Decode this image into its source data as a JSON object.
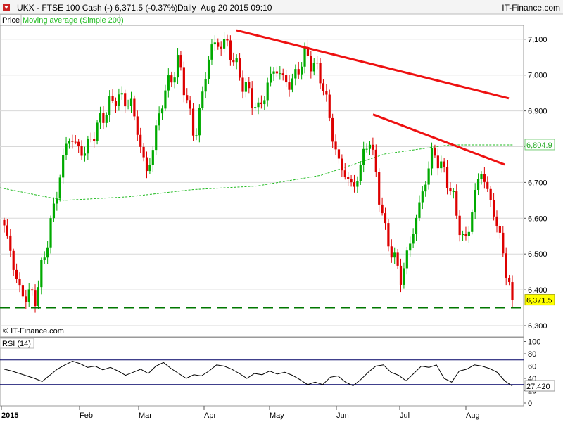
{
  "header": {
    "symbol": "UKX - FTSE 100 Cash (-)",
    "quote": "6,371.5 (-0.37%)",
    "period": "Daily",
    "datetime": "Aug 20 2015 09:10",
    "brand": "IT-Finance.com"
  },
  "legend": {
    "price": "Price",
    "ma": "Moving average (Simple 200)"
  },
  "copyright": "© IT-Finance.com",
  "colors": {
    "up": "#00aa00",
    "down": "#dd0000",
    "ma": "#22bb22",
    "trend": "#ee1111",
    "support": "#007700",
    "grid": "#d8d8d8",
    "rsi_line": "#000000",
    "rsi_band": "#000066"
  },
  "chart_data": [
    {
      "type": "candlestick",
      "name": "FTSE 100 Cash",
      "period": "Daily",
      "ylim": [
        6270,
        7170
      ],
      "y_ticks": [
        6300,
        6400,
        6500,
        6600,
        6700,
        6800,
        6900,
        7000,
        7100
      ],
      "y_tick_labels": [
        "6,300",
        "6,400",
        "6,500",
        "6,600",
        "6,700",
        "6,800",
        "6,900",
        "7,000",
        "7,100"
      ],
      "x_tick_labels": [
        "2015",
        "Feb",
        "Mar",
        "Apr",
        "May",
        "Jun",
        "Jul",
        "Aug"
      ],
      "grid": true,
      "last_price_label": "6,371.5",
      "ma_label": "6,804.9",
      "trendlines": [
        {
          "from": [
            "Apr 14 2015",
            7125
          ],
          "to": [
            "Aug 20 2015",
            6935
          ]
        },
        {
          "from": [
            "Jun 15 2015",
            6890
          ],
          "to": [
            "Aug 20 2015",
            6750
          ]
        }
      ],
      "support_level": 6350,
      "ohlc_anchors": [
        {
          "date": "Jan 2015",
          "close": 6580
        },
        {
          "date": "Jan 2015",
          "close": 6390
        },
        {
          "date": "Jan 2015",
          "close": 6380
        },
        {
          "date": "Jan 2015",
          "close": 6600
        },
        {
          "date": "Jan 2015",
          "close": 6830
        },
        {
          "date": "Feb 2015",
          "close": 6780
        },
        {
          "date": "Feb 2015",
          "close": 6870
        },
        {
          "date": "Feb 2015",
          "close": 6940
        },
        {
          "date": "Mar 2015",
          "close": 6920
        },
        {
          "date": "Mar 2015",
          "close": 6720
        },
        {
          "date": "Mar 2015",
          "close": 6940
        },
        {
          "date": "Mar 2015",
          "close": 7040
        },
        {
          "date": "Apr 2015",
          "close": 6820
        },
        {
          "date": "Apr 2015",
          "close": 7080
        },
        {
          "date": "Apr 2015",
          "close": 7090
        },
        {
          "date": "May 2015",
          "close": 6980
        },
        {
          "date": "May 2015",
          "close": 6900
        },
        {
          "date": "May 2015",
          "close": 7020
        },
        {
          "date": "May 2015",
          "close": 6970
        },
        {
          "date": "May 2015",
          "close": 7060
        },
        {
          "date": "Jun 2015",
          "close": 6990
        },
        {
          "date": "Jun 2015",
          "close": 6760
        },
        {
          "date": "Jun 2015",
          "close": 6680
        },
        {
          "date": "Jun 2015",
          "close": 6830
        },
        {
          "date": "Jul 2015",
          "close": 6560
        },
        {
          "date": "Jul 2015",
          "close": 6430
        },
        {
          "date": "Jul 2015",
          "close": 6610
        },
        {
          "date": "Jul 2015",
          "close": 6790
        },
        {
          "date": "Jul 2015",
          "close": 6700
        },
        {
          "date": "Aug 2015",
          "close": 6520
        },
        {
          "date": "Aug 2015",
          "close": 6740
        },
        {
          "date": "Aug 2015",
          "close": 6590
        },
        {
          "date": "Aug 2015",
          "close": 6371.5
        }
      ],
      "ma_anchors": [
        {
          "date": "Jan 2015",
          "value": 6685
        },
        {
          "date": "Jan 2015",
          "value": 6650
        },
        {
          "date": "Feb 2015",
          "value": 6660
        },
        {
          "date": "Mar 2015",
          "value": 6680
        },
        {
          "date": "Apr 2015",
          "value": 6690
        },
        {
          "date": "May 2015",
          "value": 6720
        },
        {
          "date": "Jun 2015",
          "value": 6780
        },
        {
          "date": "Jul 2015",
          "value": 6805
        },
        {
          "date": "Aug 2015",
          "value": 6805
        }
      ]
    },
    {
      "type": "line",
      "name": "RSI (14)",
      "ylim": [
        0,
        100
      ],
      "y_ticks": [
        0,
        20,
        40,
        60,
        80,
        100
      ],
      "y_tick_labels": [
        "0",
        "20",
        "40",
        "60",
        "80",
        "100"
      ],
      "bands": [
        30,
        70
      ],
      "last_value_label": "27.420",
      "values": [
        55,
        52,
        48,
        44,
        40,
        35,
        45,
        55,
        62,
        68,
        64,
        58,
        60,
        54,
        58,
        52,
        45,
        50,
        55,
        48,
        60,
        66,
        56,
        48,
        40,
        46,
        44,
        52,
        62,
        60,
        55,
        48,
        40,
        48,
        46,
        52,
        47,
        50,
        45,
        38,
        30,
        34,
        30,
        42,
        44,
        34,
        28,
        38,
        50,
        60,
        62,
        50,
        45,
        36,
        48,
        60,
        58,
        62,
        40,
        34,
        52,
        55,
        62,
        60,
        56,
        50,
        36,
        27.42
      ]
    }
  ]
}
